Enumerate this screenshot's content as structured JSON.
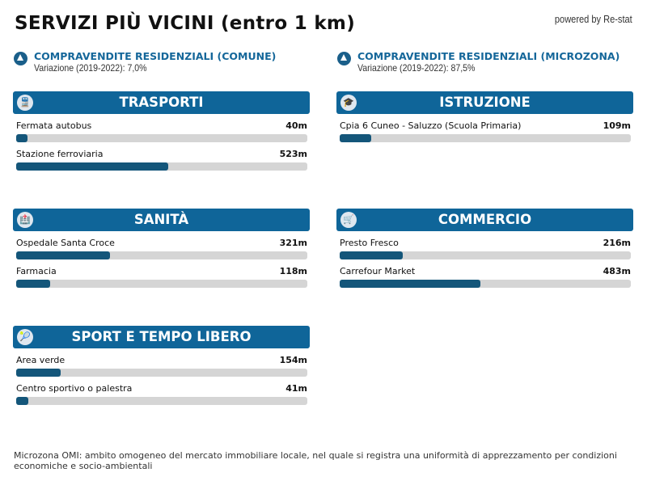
{
  "title": "SERVIZI PIÙ VICINI (entro 1 km)",
  "powered_by": "powered by Re-stat",
  "stats": [
    {
      "heading": "COMPRAVENDITE RESIDENZIALI (COMUNE)",
      "value": "Variazione (2019-2022): 7,0%",
      "icon": "triangle-up-icon"
    },
    {
      "heading": "COMPRAVENDITE RESIDENZIALI (MICROZONA)",
      "value": "Variazione (2019-2022): 87,5%",
      "icon": "triangle-up-icon"
    }
  ],
  "max_distance_m": 1000,
  "colors": {
    "header": "#0f6599",
    "bar_fill": "#14567a",
    "bar_track": "#d5d5d5",
    "accent_text": "#15679a"
  },
  "cards": [
    {
      "title": "TRASPORTI",
      "icon": "train-icon",
      "items": [
        {
          "name": "Fermata autobus",
          "distance": "40m",
          "meters": 40
        },
        {
          "name": "Stazione ferroviaria",
          "distance": "523m",
          "meters": 523
        }
      ]
    },
    {
      "title": "ISTRUZIONE",
      "icon": "student-icon",
      "items": [
        {
          "name": "Cpia 6 Cuneo - Saluzzo (Scuola Primaria)",
          "distance": "109m",
          "meters": 109
        }
      ]
    },
    {
      "title": "SANITÀ",
      "icon": "hospital-icon",
      "items": [
        {
          "name": "Ospedale Santa Croce",
          "distance": "321m",
          "meters": 321
        },
        {
          "name": "Farmacia",
          "distance": "118m",
          "meters": 118
        }
      ]
    },
    {
      "title": "COMMERCIO",
      "icon": "shopping-cart-icon",
      "items": [
        {
          "name": "Presto Fresco",
          "distance": "216m",
          "meters": 216
        },
        {
          "name": "Carrefour Market",
          "distance": "483m",
          "meters": 483
        }
      ]
    },
    {
      "title": "SPORT E TEMPO LIBERO",
      "icon": "tennis-icon",
      "items": [
        {
          "name": "Area verde",
          "distance": "154m",
          "meters": 154
        },
        {
          "name": "Centro sportivo o palestra",
          "distance": "41m",
          "meters": 41
        }
      ]
    }
  ],
  "footnote": "Microzona OMI: ambito omogeneo del mercato immobiliare locale, nel quale si registra una uniformità di apprezzamento per condizioni economiche e socio-ambientali"
}
